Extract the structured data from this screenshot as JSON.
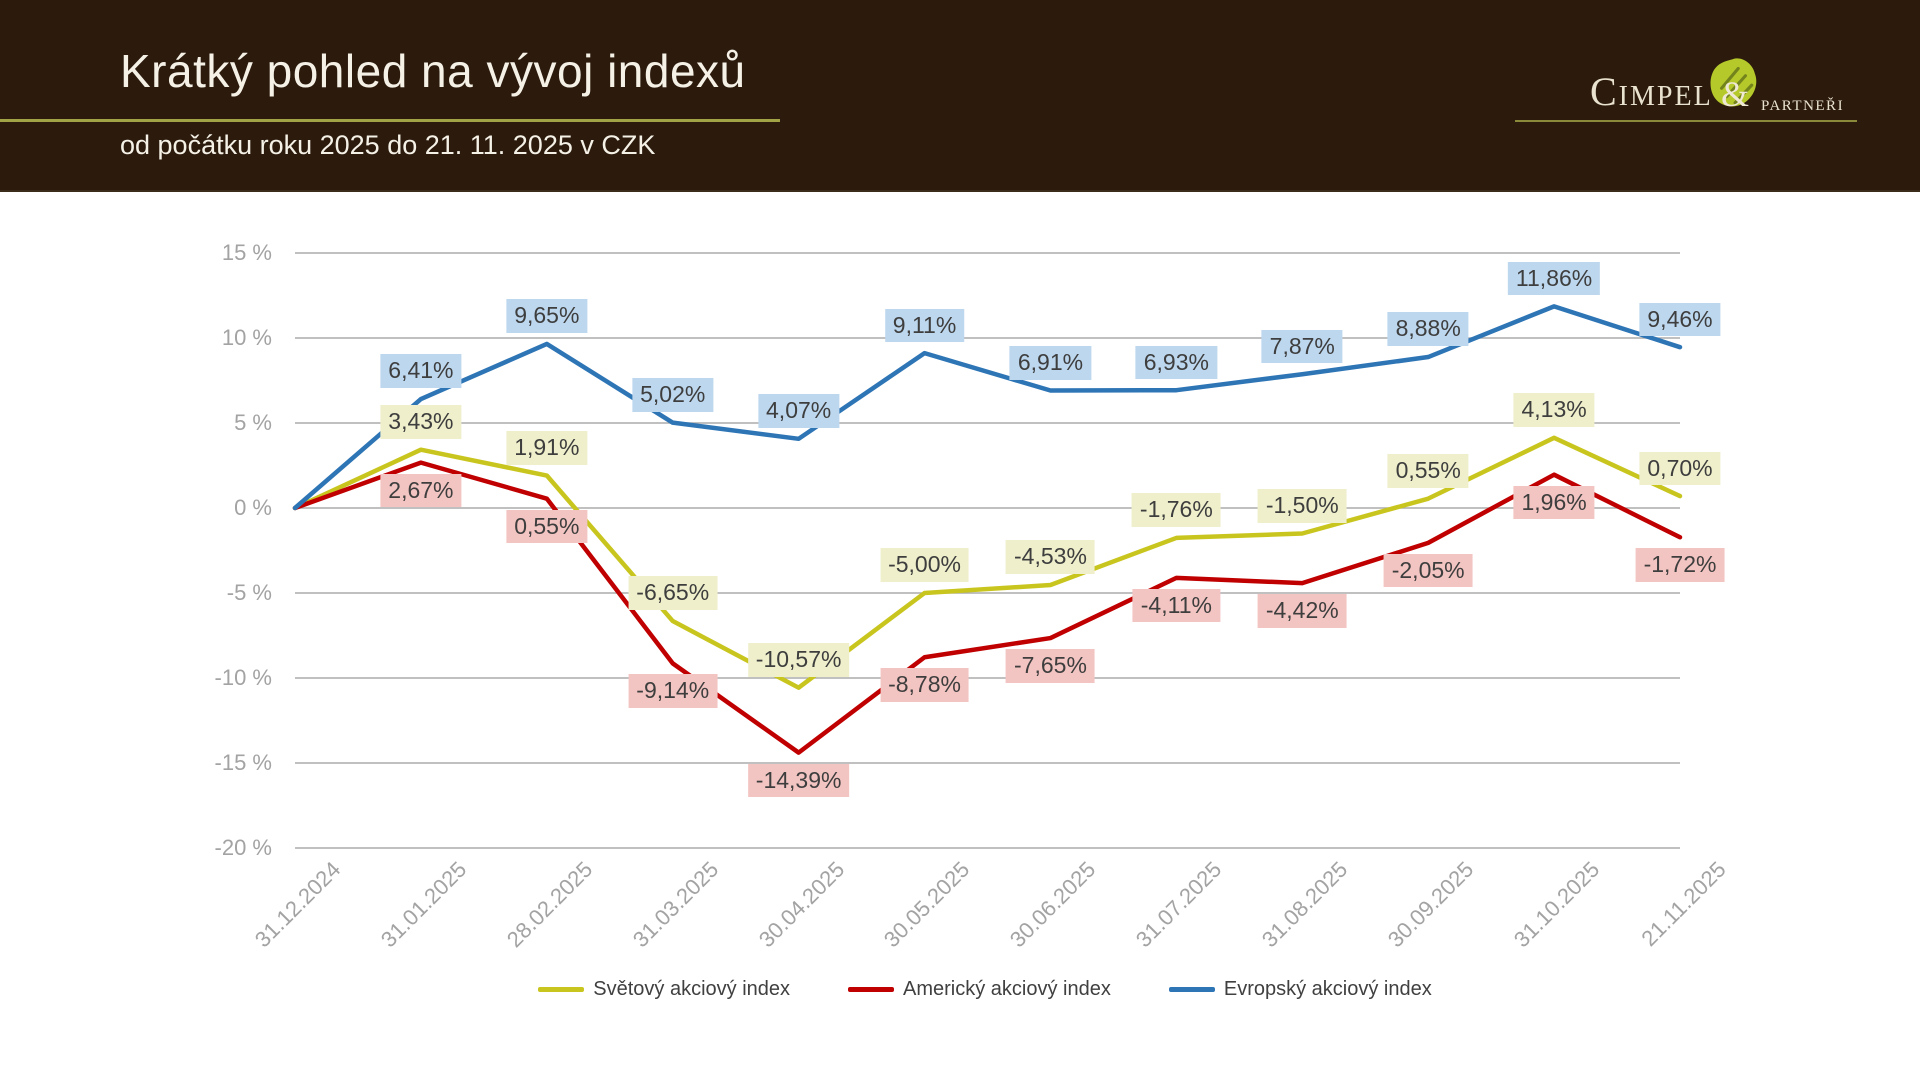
{
  "header": {
    "title": "Krátký pohled na vývoj indexů",
    "subtitle": "od počátku roku 2025 do 21. 11. 2025 v CZK",
    "background_color": "#2C1B0D",
    "accent_color": "#A2A246"
  },
  "logo": {
    "name_main": "Cimpel",
    "ampersand": "&",
    "name_secondary": "partneři",
    "text_color": "#E9E2CE",
    "leaf_color": "#B6C92B"
  },
  "chart_data": {
    "type": "line",
    "title": "Krátký pohled na vývoj indexů od počátku roku 2025 do 21. 11. 2025 v CZK",
    "grid": true,
    "legend_position": "bottom",
    "ylim": [
      -20,
      15
    ],
    "ytick_step": 5,
    "yticks": [
      {
        "value": 15,
        "label": "15 %"
      },
      {
        "value": 10,
        "label": "10 %"
      },
      {
        "value": 5,
        "label": "5 %"
      },
      {
        "value": 0,
        "label": "0 %"
      },
      {
        "value": -5,
        "label": "-5 %"
      },
      {
        "value": -10,
        "label": "-10 %"
      },
      {
        "value": -15,
        "label": "-15 %"
      },
      {
        "value": -20,
        "label": "-20 %"
      }
    ],
    "x_labels": [
      "31.12.2024",
      "31.01.2025",
      "28.02.2025",
      "31.03.2025",
      "30.04.2025",
      "30.05.2025",
      "30.06.2025",
      "31.07.2025",
      "31.08.2025",
      "30.09.2025",
      "31.10.2025",
      "21.11.2025"
    ],
    "grid_color": "#ABABAB",
    "axis_text_color": "#A3A3A3",
    "label_text_color": "#3E3E3E",
    "series": [
      {
        "name": "Světový akciový index",
        "color": "#C9C51F",
        "label_bg": "#EFEFCC",
        "label_position": "above",
        "values": [
          0,
          3.43,
          1.91,
          -6.65,
          -10.57,
          -5.0,
          -4.53,
          -1.76,
          -1.5,
          0.55,
          4.13,
          0.7
        ],
        "labels": [
          null,
          "3,43%",
          "1,91%",
          "-6,65%",
          "-10,57%",
          "-5,00%",
          "-4,53%",
          "-1,76%",
          "-1,50%",
          "0,55%",
          "4,13%",
          "0,70%"
        ]
      },
      {
        "name": "Americký akciový index",
        "color": "#C00000",
        "label_bg": "#F3C5C2",
        "label_position": "below",
        "values": [
          0,
          2.67,
          0.55,
          -9.14,
          -14.39,
          -8.78,
          -7.65,
          -4.11,
          -4.42,
          -2.05,
          1.96,
          -1.72
        ],
        "labels": [
          null,
          "2,67%",
          "0,55%",
          "-9,14%",
          "-14,39%",
          "-8,78%",
          "-7,65%",
          "-4,11%",
          "-4,42%",
          "-2,05%",
          "1,96%",
          "-1,72%"
        ]
      },
      {
        "name": "Evropský akciový index",
        "color": "#2E75B6",
        "label_bg": "#BDD7EE",
        "label_position": "above",
        "values": [
          0,
          6.41,
          9.65,
          5.02,
          4.07,
          9.11,
          6.91,
          6.93,
          7.87,
          8.88,
          11.86,
          9.46
        ],
        "labels": [
          null,
          "6,41%",
          "9,65%",
          "5,02%",
          "4,07%",
          "9,11%",
          "6,91%",
          "6,93%",
          "7,87%",
          "8,88%",
          "11,86%",
          "9,46%"
        ]
      }
    ]
  }
}
